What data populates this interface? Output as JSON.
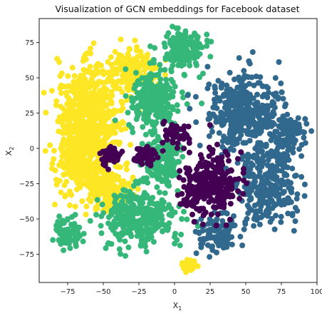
{
  "chart_data": {
    "type": "scatter",
    "title": "Visualization of GCN embeddings for Facebook dataset",
    "xlabel": "X",
    "xlabel_sub": "1",
    "ylabel": "X",
    "ylabel_sub": "2",
    "xlim": [
      -95,
      100
    ],
    "ylim": [
      -95,
      92
    ],
    "xticks": [
      -75,
      -50,
      -25,
      0,
      25,
      50,
      75,
      100
    ],
    "yticks": [
      -75,
      -50,
      -25,
      0,
      25,
      50,
      75
    ],
    "grid": false,
    "legend": "none",
    "colors": {
      "purple": "#440154",
      "blue": "#31688e",
      "green": "#35b779",
      "yellow": "#fde725"
    },
    "clusters": [
      {
        "color": "yellow",
        "blobs": [
          [
            -60,
            25,
            18,
            28,
            520
          ],
          [
            -65,
            -10,
            16,
            20,
            300
          ],
          [
            -30,
            55,
            14,
            12,
            180
          ],
          [
            -45,
            -30,
            14,
            12,
            180
          ],
          [
            10,
            -82,
            5,
            4,
            40
          ]
        ]
      },
      {
        "color": "green",
        "blobs": [
          [
            -15,
            35,
            14,
            18,
            260
          ],
          [
            5,
            70,
            12,
            12,
            160
          ],
          [
            -25,
            -50,
            22,
            16,
            300
          ],
          [
            -10,
            -10,
            12,
            14,
            160
          ],
          [
            -75,
            -60,
            8,
            10,
            70
          ]
        ]
      },
      {
        "color": "blue",
        "blobs": [
          [
            50,
            25,
            22,
            25,
            380
          ],
          [
            65,
            -25,
            18,
            25,
            300
          ],
          [
            30,
            -60,
            12,
            12,
            110
          ],
          [
            80,
            10,
            10,
            10,
            90
          ]
        ]
      },
      {
        "color": "purple",
        "blobs": [
          [
            25,
            -25,
            16,
            20,
            280
          ],
          [
            -20,
            -5,
            8,
            6,
            60
          ],
          [
            -45,
            -5,
            6,
            6,
            40
          ],
          [
            0,
            10,
            10,
            6,
            50
          ]
        ]
      }
    ]
  }
}
